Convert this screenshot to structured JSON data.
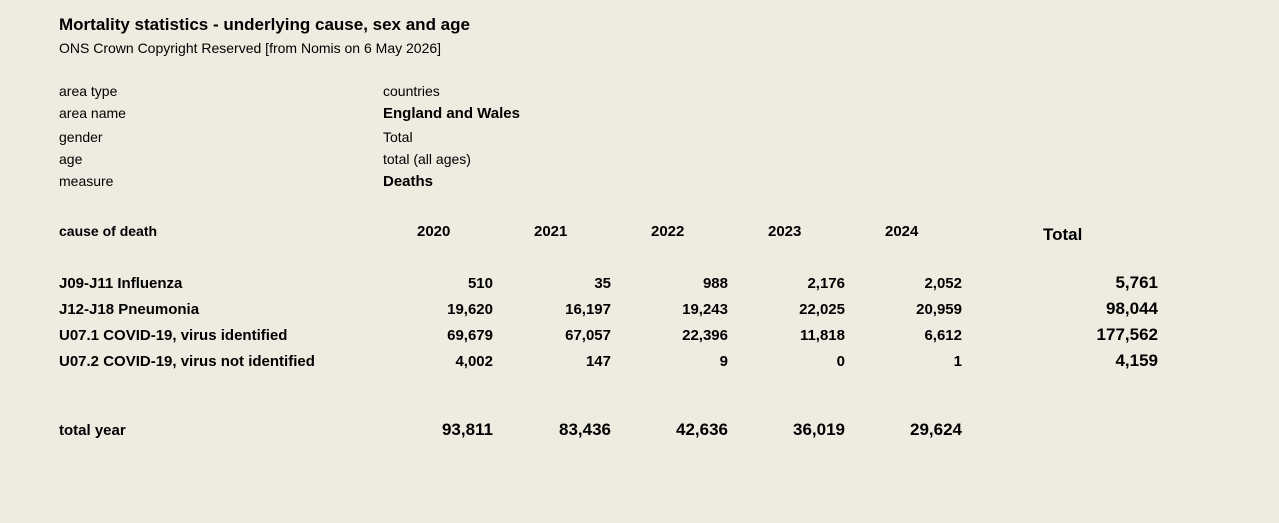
{
  "header": {
    "title": "Mortality statistics - underlying cause, sex and age",
    "subtitle": "ONS Crown Copyright Reserved [from Nomis on 6 May 2026]"
  },
  "meta": [
    {
      "label": "area type",
      "value": "countries"
    },
    {
      "label": "area name",
      "value": "England and Wales"
    },
    {
      "label": "gender",
      "value": "Total"
    },
    {
      "label": "age",
      "value": "total (all ages)"
    },
    {
      "label": "measure",
      "value": "Deaths"
    }
  ],
  "table": {
    "columns": [
      "cause of death",
      "2020",
      "2021",
      "2022",
      "2023",
      "2024",
      "Total"
    ],
    "rows": [
      [
        "J09-J11 Influenza",
        "510",
        "35",
        "988",
        "2,176",
        "2,052",
        "5,761"
      ],
      [
        "J12-J18 Pneumonia",
        "19,620",
        "16,197",
        "19,243",
        "22,025",
        "20,959",
        "98,044"
      ],
      [
        "U07.1 COVID-19, virus identified",
        "69,679",
        "67,057",
        "22,396",
        "11,818",
        "6,612",
        "177,562"
      ],
      [
        "U07.2 COVID-19, virus not identified",
        "4,002",
        "147",
        "9",
        "0",
        "1",
        "4,159"
      ]
    ],
    "total_row": [
      "total year",
      "93,811",
      "83,436",
      "42,636",
      "36,019",
      "29,624"
    ]
  }
}
